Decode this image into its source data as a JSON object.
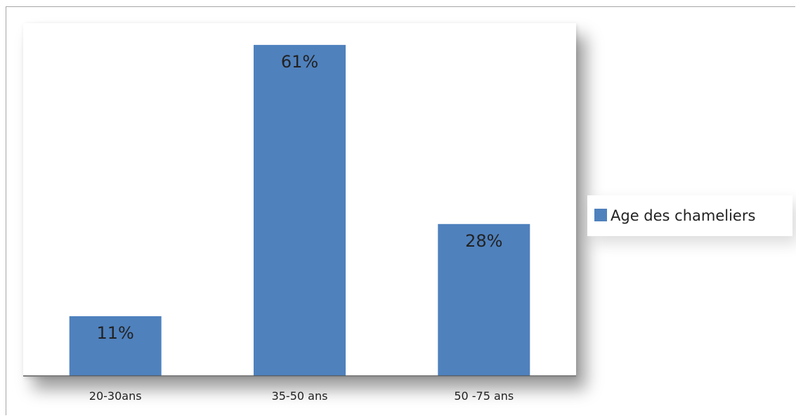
{
  "chart_data": {
    "type": "bar",
    "categories": [
      "20-30ans",
      "35-50 ans",
      "50 -75 ans"
    ],
    "series": [
      {
        "name": "Age des chameliers",
        "values": [
          11,
          61,
          28
        ],
        "data_labels": [
          "11%",
          "61%",
          "28%"
        ],
        "color": "#4f81bd"
      }
    ],
    "title": "",
    "xlabel": "",
    "ylabel": "",
    "ylim": [
      0,
      65
    ],
    "grid": false,
    "legend_position": "right"
  }
}
